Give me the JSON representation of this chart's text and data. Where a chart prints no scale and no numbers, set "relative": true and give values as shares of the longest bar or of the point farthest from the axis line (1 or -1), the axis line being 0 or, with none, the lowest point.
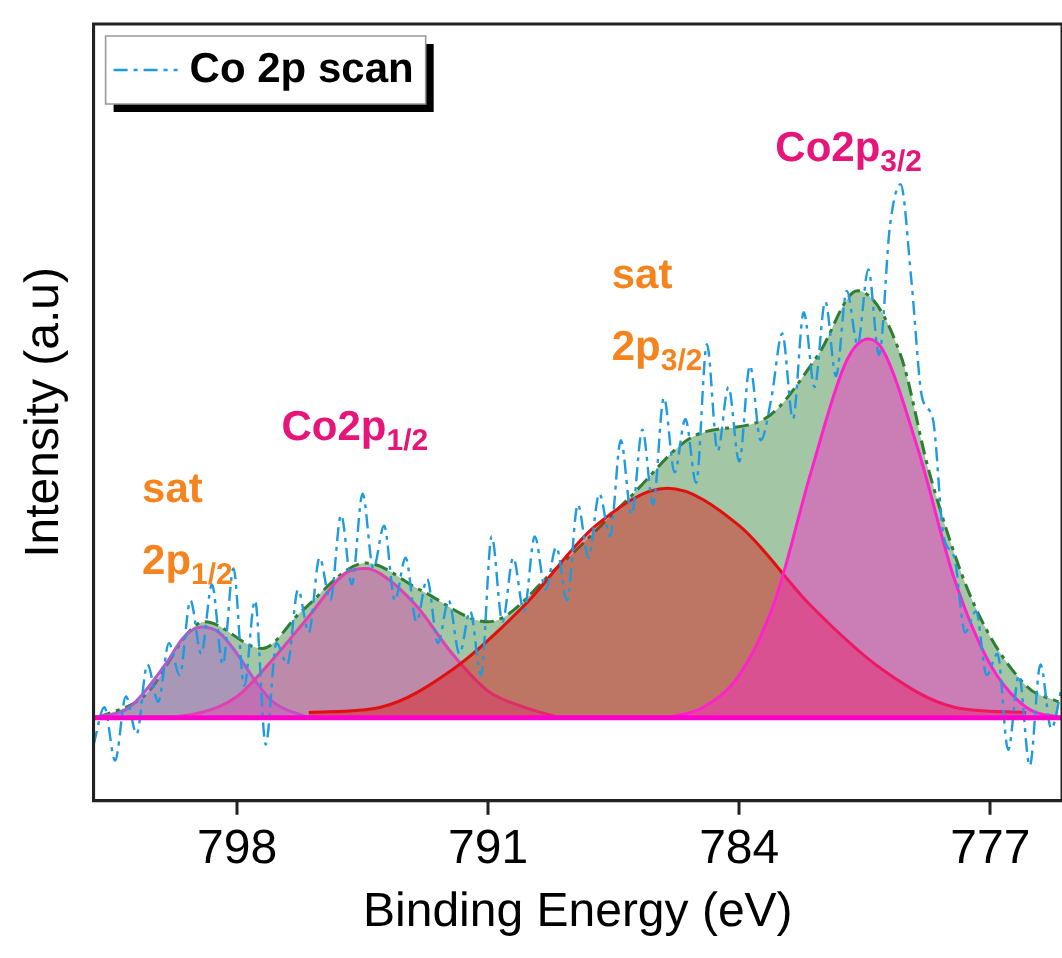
{
  "chart_data": {
    "type": "area",
    "relative": true,
    "xlabel": "Binding Energy (eV)",
    "ylabel": "Intensity (a.u)",
    "xlim": [
      802,
      775
    ],
    "xticks": [
      798,
      791,
      784,
      777
    ],
    "grid": false,
    "legend": "top left",
    "tick_labels": "x",
    "series": [
      {
        "color": "#2e7d32",
        "line_style": "dashed",
        "x": [
          801.9,
          800.6,
          798.9,
          797.3,
          796.2,
          794.4,
          792.9,
          791.0,
          789.1,
          787.1,
          785.2,
          783.3,
          781.8,
          780.7,
          779.5,
          778.7,
          777.5,
          776.0,
          775.1
        ],
        "values": [
          0.0,
          0.04,
          0.18,
          0.13,
          0.2,
          0.29,
          0.24,
          0.18,
          0.28,
          0.41,
          0.53,
          0.56,
          0.68,
          0.8,
          0.68,
          0.46,
          0.22,
          0.06,
          0.03
        ]
      },
      {
        "color": "#b05ad0",
        "x": [
          802,
          801,
          800,
          799.5,
          799,
          798.5,
          798,
          797.5,
          797,
          796
        ],
        "values": [
          0,
          0.02,
          0.1,
          0.15,
          0.17,
          0.16,
          0.12,
          0.07,
          0.03,
          0
        ]
      },
      {
        "color": "#e040b0",
        "x": [
          800,
          799,
          798,
          797,
          796,
          795,
          794.4,
          794,
          793,
          792,
          791,
          790,
          789
        ],
        "values": [
          0,
          0.01,
          0.04,
          0.11,
          0.19,
          0.27,
          0.28,
          0.27,
          0.21,
          0.12,
          0.05,
          0.02,
          0
        ]
      },
      {
        "color": "#e01010",
        "x": [
          796,
          794,
          792,
          790,
          788,
          786,
          784,
          782,
          780,
          778,
          776
        ],
        "values": [
          0.01,
          0.02,
          0.09,
          0.21,
          0.36,
          0.43,
          0.36,
          0.21,
          0.09,
          0.02,
          0.01
        ]
      },
      {
        "color": "#ff22cc",
        "x": [
          786,
          785,
          784,
          783,
          782,
          781,
          780.4,
          780,
          779,
          778,
          777,
          776,
          775
        ],
        "values": [
          0,
          0.02,
          0.08,
          0.22,
          0.46,
          0.67,
          0.71,
          0.69,
          0.5,
          0.26,
          0.1,
          0.02,
          0
        ]
      },
      {
        "type": "line",
        "name": "Co 2p scan",
        "color": "#1e9be0",
        "line_style": "dashed",
        "marker": "none",
        "x": [
          802.0,
          801.7,
          801.4,
          801.1,
          800.8,
          800.5,
          800.2,
          799.9,
          799.6,
          799.3,
          799.0,
          798.7,
          798.4,
          798.1,
          797.8,
          797.5,
          797.2,
          796.9,
          796.6,
          796.3,
          796.0,
          795.7,
          795.4,
          795.1,
          794.8,
          794.5,
          794.2,
          793.9,
          793.6,
          793.3,
          793.0,
          792.7,
          792.4,
          792.1,
          791.8,
          791.5,
          791.2,
          790.9,
          790.6,
          790.3,
          790.0,
          789.7,
          789.4,
          789.1,
          788.8,
          788.5,
          788.2,
          787.9,
          787.6,
          787.3,
          787.0,
          786.7,
          786.4,
          786.1,
          785.8,
          785.5,
          785.2,
          784.9,
          784.6,
          784.3,
          784.0,
          783.7,
          783.4,
          783.1,
          782.8,
          782.5,
          782.2,
          781.9,
          781.6,
          781.3,
          781.0,
          780.7,
          780.4,
          780.1,
          779.8,
          779.5,
          779.2,
          778.9,
          778.6,
          778.3,
          778.0,
          777.7,
          777.4,
          777.1,
          776.8,
          776.5,
          776.2,
          775.9,
          775.6,
          775.3,
          775.0
        ],
        "values": [
          -0.05,
          0.02,
          -0.08,
          0.04,
          -0.03,
          0.1,
          0.03,
          0.14,
          0.08,
          0.22,
          0.12,
          0.25,
          0.1,
          0.28,
          0.06,
          0.22,
          -0.05,
          0.14,
          0.1,
          0.24,
          0.16,
          0.3,
          0.22,
          0.38,
          0.25,
          0.42,
          0.28,
          0.36,
          0.22,
          0.3,
          0.18,
          0.26,
          0.14,
          0.22,
          0.12,
          0.2,
          0.08,
          0.34,
          0.18,
          0.3,
          0.2,
          0.34,
          0.24,
          0.32,
          0.22,
          0.4,
          0.3,
          0.42,
          0.34,
          0.52,
          0.38,
          0.54,
          0.4,
          0.6,
          0.46,
          0.56,
          0.44,
          0.7,
          0.5,
          0.62,
          0.48,
          0.66,
          0.52,
          0.6,
          0.72,
          0.56,
          0.76,
          0.62,
          0.78,
          0.64,
          0.8,
          0.7,
          0.84,
          0.68,
          0.92,
          1.0,
          0.82,
          0.6,
          0.56,
          0.34,
          0.3,
          0.16,
          0.2,
          0.08,
          0.12,
          -0.06,
          0.08,
          -0.09,
          0.1,
          -0.02,
          0.06
        ]
      }
    ],
    "ref_lines": [
      {
        "axis": "y",
        "value": 0,
        "color": "#ff00cc"
      }
    ],
    "annotations": [
      "sat\n2p$_{1/2}$",
      "Co2p$_{1/2}$",
      "sat\n2p$_{3/2}$",
      "Co2p$_{3/2}$"
    ]
  }
}
